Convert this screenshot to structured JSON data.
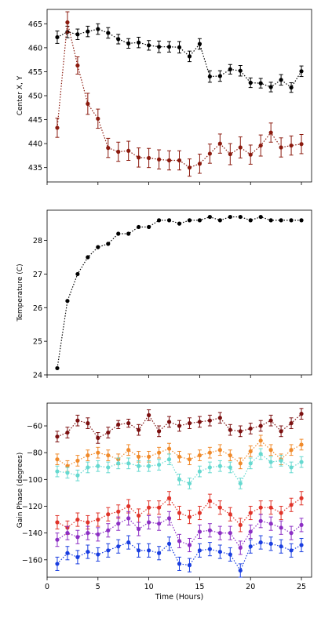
{
  "chart_data": [
    {
      "type": "scatter",
      "title": "",
      "xlabel": "",
      "ylabel": "Center X, Y",
      "xlim": [
        0,
        26
      ],
      "ylim": [
        432,
        468
      ],
      "yticks": [
        435,
        440,
        445,
        450,
        455,
        460,
        465
      ],
      "xticks": [
        0,
        5,
        10,
        15,
        20,
        25
      ],
      "show_xtick_labels": false,
      "grid": false,
      "legend": "none",
      "x": [
        1,
        2,
        3,
        4,
        5,
        6,
        7,
        8,
        9,
        10,
        11,
        12,
        13,
        14,
        15,
        16,
        17,
        18,
        19,
        20,
        21,
        22,
        23,
        24,
        25
      ],
      "series": [
        {
          "color": "#000000",
          "values": [
            462.2,
            463.3,
            462.8,
            463.4,
            463.9,
            463.1,
            461.8,
            460.9,
            461.1,
            460.5,
            460.2,
            460.2,
            460.1,
            458.2,
            460.8,
            454.0,
            454.1,
            455.5,
            455.2,
            452.7,
            452.6,
            451.8,
            453.3,
            451.7,
            455.1
          ],
          "errors": [
            1.3,
            1.2,
            1.1,
            1.1,
            1.1,
            1.1,
            1.0,
            1.0,
            1.1,
            1.0,
            1.2,
            1.1,
            1.2,
            1.1,
            1.1,
            1.2,
            1.1,
            1.0,
            1.1,
            1.0,
            1.0,
            1.0,
            1.1,
            1.0,
            1.1
          ]
        },
        {
          "color": "#8b1a0e",
          "values": [
            443.3,
            465.3,
            456.3,
            448.3,
            445.2,
            439.1,
            438.3,
            438.5,
            437.1,
            437.0,
            436.7,
            436.5,
            436.5,
            435.0,
            435.8,
            437.9,
            440.0,
            437.8,
            439.2,
            437.7,
            439.6,
            442.3,
            439.2,
            439.6,
            439.9
          ],
          "errors": [
            2.0,
            2.2,
            1.8,
            2.2,
            2.0,
            2.0,
            2.0,
            2.0,
            2.0,
            2.0,
            2.0,
            2.0,
            2.0,
            1.8,
            2.0,
            2.0,
            2.0,
            2.2,
            2.2,
            2.0,
            2.2,
            2.0,
            2.0,
            2.0,
            2.0
          ]
        }
      ]
    },
    {
      "type": "line",
      "title": "",
      "xlabel": "",
      "ylabel": "Temperature (C)",
      "xlim": [
        0,
        26
      ],
      "ylim": [
        24,
        28.9
      ],
      "yticks": [
        24,
        25,
        26,
        27,
        28
      ],
      "xticks": [
        0,
        5,
        10,
        15,
        20,
        25
      ],
      "show_xtick_labels": false,
      "grid": false,
      "legend": "none",
      "x": [
        1,
        2,
        3,
        4,
        5,
        6,
        7,
        8,
        9,
        10,
        11,
        12,
        13,
        14,
        15,
        16,
        17,
        18,
        19,
        20,
        21,
        22,
        23,
        24,
        25
      ],
      "series": [
        {
          "color": "#000000",
          "values": [
            24.2,
            26.2,
            27.0,
            27.5,
            27.8,
            27.9,
            28.2,
            28.2,
            28.4,
            28.4,
            28.6,
            28.6,
            28.5,
            28.6,
            28.6,
            28.7,
            28.6,
            28.7,
            28.7,
            28.6,
            28.7,
            28.6,
            28.6,
            28.6,
            28.6
          ]
        }
      ]
    },
    {
      "type": "scatter",
      "title": "",
      "xlabel": "Time (Hours)",
      "ylabel": "Gain Phase (degrees)",
      "xlim": [
        0,
        26
      ],
      "ylim": [
        -173,
        -43
      ],
      "yticks": [
        -160,
        -140,
        -120,
        -100,
        -80,
        -60
      ],
      "xticks": [
        0,
        5,
        10,
        15,
        20,
        25
      ],
      "show_xtick_labels": true,
      "grid": false,
      "legend": "none",
      "x": [
        1,
        2,
        3,
        4,
        5,
        6,
        7,
        8,
        9,
        10,
        11,
        12,
        13,
        14,
        15,
        16,
        17,
        18,
        19,
        20,
        21,
        22,
        23,
        24,
        25
      ],
      "series": [
        {
          "color": "#7b1010",
          "values": [
            -68,
            -65,
            -56,
            -58,
            -69,
            -65,
            -59,
            -58,
            -63,
            -52,
            -64,
            -57,
            -60,
            -58,
            -57,
            -56,
            -54,
            -63,
            -64,
            -62,
            -60,
            -56,
            -64,
            -58,
            -51
          ],
          "errors": [
            4,
            4,
            4,
            4,
            4,
            4,
            3,
            3,
            4,
            4,
            4,
            4,
            4,
            4,
            4,
            4,
            4,
            4,
            4,
            4,
            4,
            4,
            4,
            4,
            4
          ]
        },
        {
          "color": "#f08a2b",
          "values": [
            -85,
            -90,
            -86,
            -82,
            -80,
            -82,
            -85,
            -78,
            -83,
            -83,
            -80,
            -77,
            -83,
            -85,
            -82,
            -80,
            -78,
            -82,
            -88,
            -79,
            -71,
            -78,
            -85,
            -78,
            -74
          ],
          "errors": [
            4,
            4,
            4,
            4,
            4,
            4,
            4,
            4,
            4,
            4,
            4,
            4,
            4,
            4,
            4,
            4,
            4,
            4,
            4,
            4,
            4,
            4,
            4,
            4,
            4
          ]
        },
        {
          "color": "#66d9d0",
          "values": [
            -94,
            -95,
            -97,
            -91,
            -90,
            -91,
            -88,
            -88,
            -90,
            -90,
            -89,
            -85,
            -100,
            -103,
            -94,
            -91,
            -90,
            -91,
            -103,
            -88,
            -81,
            -87,
            -86,
            -91,
            -87
          ],
          "errors": [
            4,
            4,
            4,
            4,
            4,
            4,
            4,
            4,
            4,
            4,
            4,
            4,
            4,
            4,
            4,
            4,
            4,
            4,
            4,
            4,
            4,
            4,
            4,
            4,
            4
          ]
        },
        {
          "color": "#e0342a",
          "values": [
            -132,
            -136,
            -130,
            -132,
            -130,
            -126,
            -124,
            -120,
            -127,
            -121,
            -121,
            -114,
            -125,
            -128,
            -125,
            -116,
            -121,
            -126,
            -134,
            -125,
            -121,
            -121,
            -125,
            -119,
            -114
          ],
          "errors": [
            5,
            5,
            5,
            5,
            5,
            5,
            5,
            5,
            5,
            5,
            5,
            5,
            5,
            5,
            5,
            5,
            5,
            5,
            5,
            5,
            5,
            5,
            5,
            5,
            5
          ]
        },
        {
          "color": "#8c2fc4",
          "values": [
            -145,
            -140,
            -143,
            -140,
            -141,
            -138,
            -133,
            -129,
            -137,
            -132,
            -133,
            -129,
            -146,
            -149,
            -139,
            -138,
            -140,
            -140,
            -151,
            -139,
            -131,
            -133,
            -136,
            -140,
            -134
          ],
          "errors": [
            5,
            5,
            5,
            5,
            5,
            5,
            5,
            5,
            5,
            5,
            5,
            5,
            5,
            5,
            5,
            5,
            5,
            5,
            5,
            5,
            5,
            5,
            5,
            5,
            5
          ]
        },
        {
          "color": "#1a3ee0",
          "values": [
            -163,
            -155,
            -158,
            -154,
            -156,
            -153,
            -150,
            -147,
            -153,
            -153,
            -155,
            -148,
            -163,
            -164,
            -153,
            -152,
            -154,
            -156,
            -168,
            -150,
            -147,
            -148,
            -150,
            -153,
            -149
          ],
          "errors": [
            5,
            5,
            5,
            5,
            5,
            5,
            5,
            5,
            5,
            5,
            5,
            5,
            5,
            5,
            5,
            5,
            5,
            5,
            5,
            5,
            5,
            5,
            5,
            5,
            5
          ]
        }
      ]
    }
  ]
}
